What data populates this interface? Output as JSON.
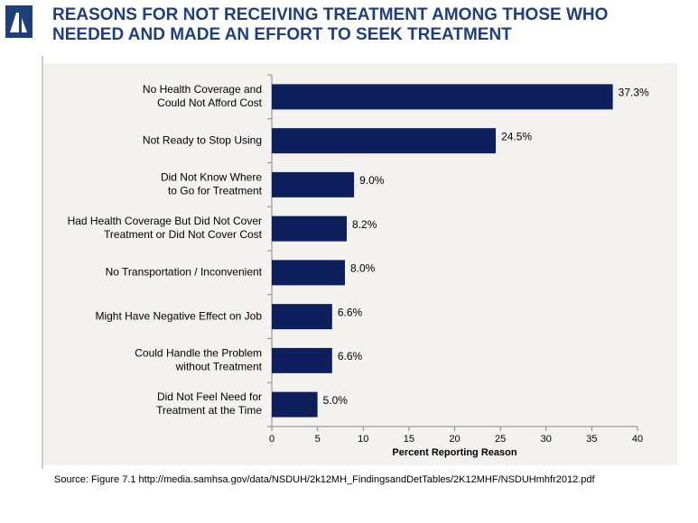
{
  "chart_data": {
    "type": "bar",
    "orientation": "horizontal",
    "title": "REASONS FOR NOT RECEIVING TREATMENT AMONG THOSE WHO\nNEEDED AND MADE AN EFFORT TO SEEK TREATMENT",
    "categories": [
      "No Health Coverage and\nCould Not Afford Cost",
      "Not Ready to Stop Using",
      "Did Not Know Where\nto Go for Treatment",
      "Had Health Coverage But Did Not Cover\nTreatment or Did Not Cover Cost",
      "No Transportation / Inconvenient",
      "Might Have Negative Effect on Job",
      "Could Handle the Problem\nwithout Treatment",
      "Did Not Feel Need for\nTreatment at the Time"
    ],
    "values": [
      37.3,
      24.5,
      9.0,
      8.2,
      8.0,
      6.6,
      6.6,
      5.0
    ],
    "value_labels": [
      "37.3%",
      "24.5%",
      "9.0%",
      "8.2%",
      "8.0%",
      "6.6%",
      "6.6%",
      "5.0%"
    ],
    "color": "#0d1f5c",
    "xlim": [
      0,
      40
    ],
    "xticks": [
      0,
      5,
      10,
      15,
      20,
      25,
      30,
      35,
      40
    ],
    "x_label": "Percent Reporting Reason",
    "source": "Source: Figure 7.1 http://media.samhsa.gov/data/NSDUH/2k12MH_FindingsandDetTables/2K12MHF/NSDUHmhfr2012.pdf"
  }
}
